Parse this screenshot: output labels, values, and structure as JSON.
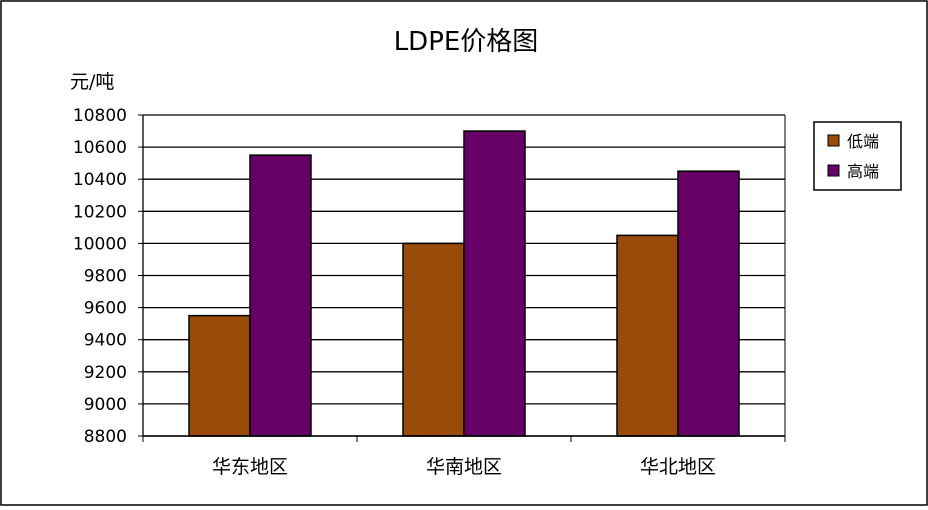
{
  "chart_data": {
    "type": "bar",
    "title": "LDPE价格图",
    "ylabel": "元/吨",
    "xlabel": "",
    "categories": [
      "华东地区",
      "华南地区",
      "华北地区"
    ],
    "series": [
      {
        "name": "低端",
        "values": [
          9550,
          10000,
          10050
        ],
        "color": "#994C0A"
      },
      {
        "name": "高端",
        "values": [
          10550,
          10700,
          10450
        ],
        "color": "#660066"
      }
    ],
    "ylim": [
      8800,
      10800
    ],
    "yticks": [
      8800,
      9000,
      9200,
      9400,
      9600,
      9800,
      10000,
      10200,
      10400,
      10600,
      10800
    ],
    "grid": true,
    "legend_position": "right"
  }
}
